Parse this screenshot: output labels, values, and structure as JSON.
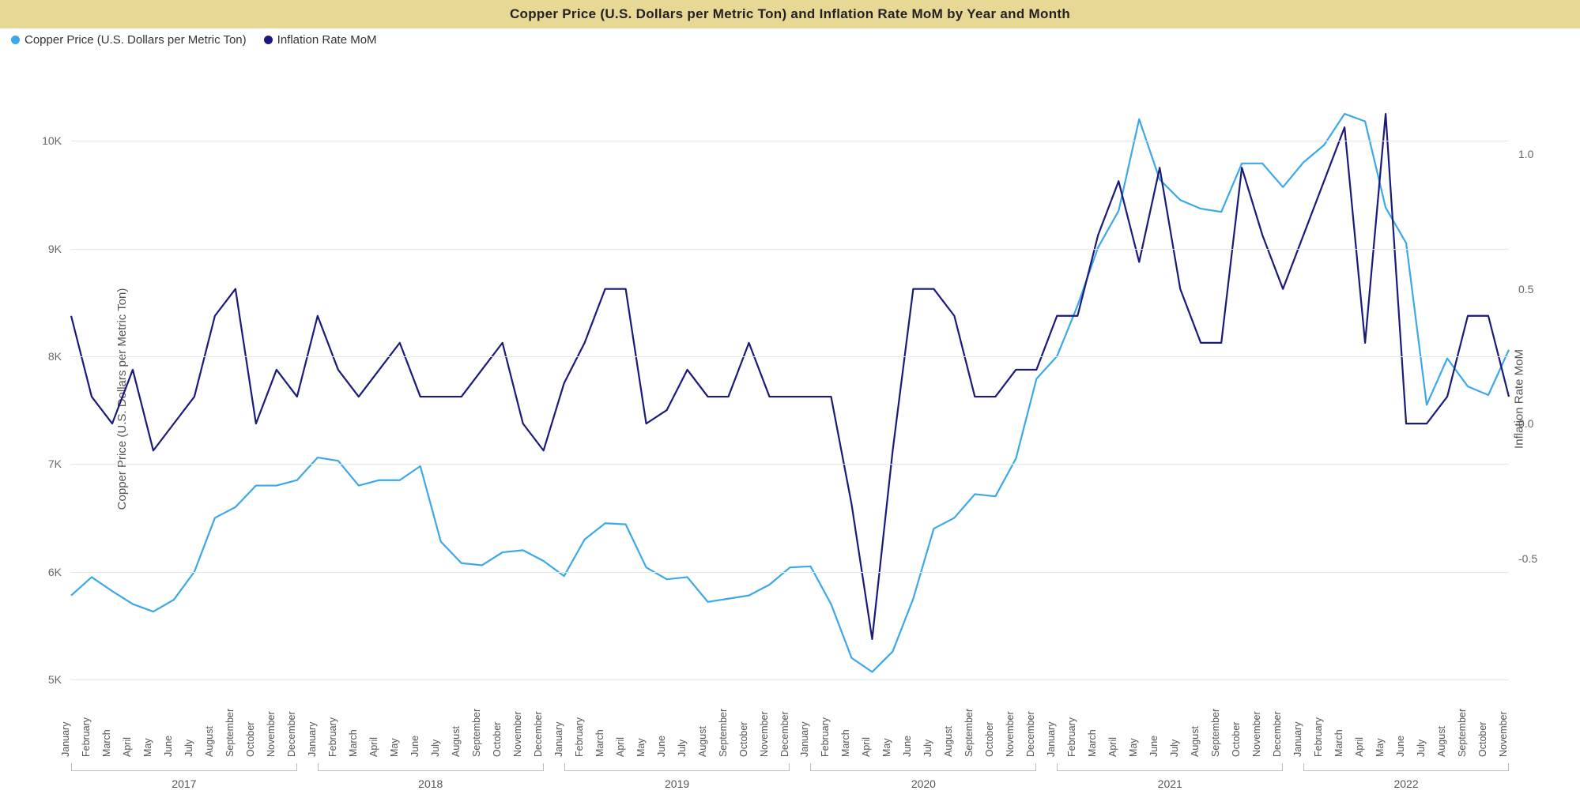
{
  "title": "Copper Price (U.S. Dollars per Metric Ton) and Inflation Rate MoM by Year and Month",
  "title_bg": "#e8d896",
  "title_color": "#222222",
  "legend": {
    "items": [
      {
        "label": "Copper Price (U.S. Dollars per Metric Ton)",
        "color": "#3ba8e8"
      },
      {
        "label": "Inflation Rate MoM",
        "color": "#1a1a7a"
      }
    ]
  },
  "chart": {
    "type": "line",
    "background_color": "#ffffff",
    "grid_color": "#e6e6e6",
    "line_width": 2.2,
    "y_left": {
      "label": "Copper Price (U.S. Dollars per Metric Ton)",
      "min": 5000,
      "max": 10500,
      "ticks": [
        {
          "v": 5000,
          "label": "5K"
        },
        {
          "v": 6000,
          "label": "6K"
        },
        {
          "v": 7000,
          "label": "7K"
        },
        {
          "v": 8000,
          "label": "8K"
        },
        {
          "v": 9000,
          "label": "9K"
        },
        {
          "v": 10000,
          "label": "10K"
        }
      ],
      "label_fontsize": 15,
      "tick_fontsize": 14,
      "label_color": "#555555"
    },
    "y_right": {
      "label": "Inflation Rate MoM",
      "min": -0.95,
      "max": 1.25,
      "ticks": [
        {
          "v": -0.5,
          "label": "-0.5"
        },
        {
          "v": 0.0,
          "label": "0.0"
        },
        {
          "v": 0.5,
          "label": "0.5"
        },
        {
          "v": 1.0,
          "label": "1.0"
        }
      ],
      "label_fontsize": 15,
      "tick_fontsize": 14,
      "label_color": "#555555"
    },
    "x": {
      "months": [
        "January",
        "February",
        "March",
        "April",
        "May",
        "June",
        "July",
        "August",
        "September",
        "October",
        "November",
        "December"
      ],
      "years": [
        {
          "year": "2017",
          "start": 0,
          "end": 11
        },
        {
          "year": "2018",
          "start": 12,
          "end": 23
        },
        {
          "year": "2019",
          "start": 24,
          "end": 35
        },
        {
          "year": "2020",
          "start": 36,
          "end": 47
        },
        {
          "year": "2021",
          "start": 48,
          "end": 59
        },
        {
          "year": "2022",
          "start": 60,
          "end": 70
        }
      ],
      "label_fontsize": 12.5,
      "year_fontsize": 14,
      "label_color": "#555555"
    },
    "series": [
      {
        "name": "copper",
        "color": "#3ba8e8",
        "axis": "left",
        "values": [
          5780,
          5950,
          5820,
          5700,
          5630,
          5740,
          6000,
          6500,
          6600,
          6800,
          6800,
          6850,
          7060,
          7030,
          6800,
          6850,
          6850,
          6980,
          6280,
          6080,
          6060,
          6180,
          6200,
          6100,
          5960,
          6300,
          6450,
          6440,
          6040,
          5930,
          5950,
          5720,
          5750,
          5780,
          5880,
          6040,
          6050,
          5700,
          5200,
          5070,
          5260,
          5750,
          6400,
          6500,
          6720,
          6700,
          7050,
          7790,
          8000,
          8470,
          9010,
          9350,
          10200,
          9640,
          9450,
          9370,
          9340,
          9790,
          9790,
          9570,
          9800,
          9960,
          10250,
          10180,
          9380,
          9050,
          7550,
          7980,
          7720,
          7640,
          8060
        ]
      },
      {
        "name": "inflation",
        "color": "#1a1a7a",
        "axis": "right",
        "values": [
          0.4,
          0.1,
          0.0,
          0.2,
          -0.1,
          0.0,
          0.1,
          0.4,
          0.5,
          0.0,
          0.2,
          0.1,
          0.4,
          0.2,
          0.1,
          0.2,
          0.3,
          0.1,
          0.1,
          0.1,
          0.2,
          0.3,
          0.0,
          -0.1,
          0.15,
          0.3,
          0.5,
          0.5,
          0.0,
          0.05,
          0.2,
          0.1,
          0.1,
          0.3,
          0.1,
          0.1,
          0.1,
          0.1,
          -0.3,
          -0.8,
          -0.1,
          0.5,
          0.5,
          0.4,
          0.1,
          0.1,
          0.2,
          0.2,
          0.4,
          0.4,
          0.7,
          0.9,
          0.6,
          0.95,
          0.5,
          0.3,
          0.3,
          0.95,
          0.7,
          0.5,
          0.7,
          0.9,
          1.1,
          0.3,
          1.15,
          0.0,
          0.0,
          0.1,
          0.4,
          0.4,
          0.1
        ]
      }
    ]
  }
}
